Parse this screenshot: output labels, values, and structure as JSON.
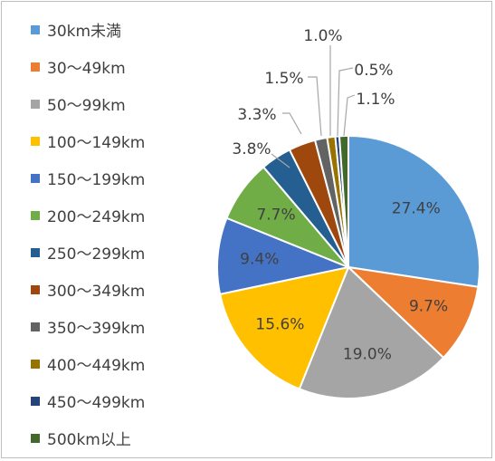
{
  "chart_data": {
    "type": "pie",
    "title": "",
    "legend_position": "left",
    "start_angle_deg": 0,
    "direction": "clockwise",
    "categories": [
      "30km未満",
      "30～49km",
      "50～99km",
      "100～149km",
      "150～199km",
      "200～249km",
      "250～299km",
      "300～349km",
      "350～399km",
      "400～449km",
      "450～499km",
      "500km以上"
    ],
    "values": [
      27.4,
      9.7,
      19.0,
      15.6,
      9.4,
      7.7,
      3.8,
      3.3,
      1.5,
      1.0,
      0.5,
      1.1
    ],
    "value_labels": [
      "27.4%",
      "9.7%",
      "19.0%",
      "15.6%",
      "9.4%",
      "7.7%",
      "3.8%",
      "3.3%",
      "1.5%",
      "1.0%",
      "0.5%",
      "1.1%"
    ],
    "colors": [
      "#5B9BD5",
      "#ED7D31",
      "#A5A5A5",
      "#FFC000",
      "#4472C4",
      "#70AD47",
      "#255E91",
      "#9E480E",
      "#636363",
      "#997300",
      "#264478",
      "#43682B"
    ]
  }
}
